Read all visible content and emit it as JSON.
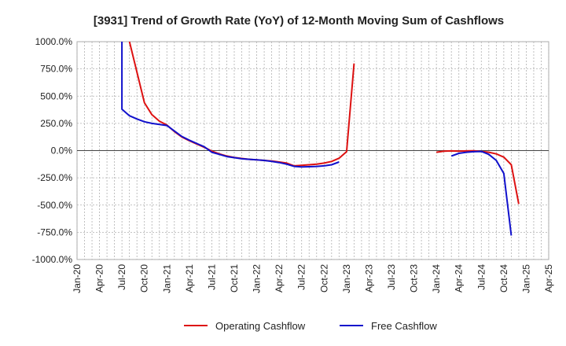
{
  "chart_data": {
    "type": "line",
    "title": "[3931]  Trend of Growth Rate (YoY) of 12-Month Moving Sum of Cashflows",
    "xlabel": "",
    "ylabel": "",
    "ylim": [
      -1000,
      1000
    ],
    "yticks": [
      1000,
      750,
      500,
      250,
      0,
      -250,
      -500,
      -750,
      -1000
    ],
    "ytick_labels": [
      "1000.0%",
      "750.0%",
      "500.0%",
      "250.0%",
      "0.0%",
      "-250.0%",
      "-500.0%",
      "-750.0%",
      "-1000.0%"
    ],
    "xrange": [
      "2020-01",
      "2025-04"
    ],
    "xtick_labels": [
      "Jan-20",
      "Apr-20",
      "Jul-20",
      "Oct-20",
      "Jan-21",
      "Apr-21",
      "Jul-21",
      "Oct-21",
      "Jan-22",
      "Apr-22",
      "Jul-22",
      "Oct-22",
      "Jan-23",
      "Apr-23",
      "Jul-23",
      "Oct-23",
      "Jan-24",
      "Apr-24",
      "Jul-24",
      "Oct-24",
      "Jan-25",
      "Apr-25"
    ],
    "grid": true,
    "legend_position": "bottom",
    "series": [
      {
        "name": "Operating Cashflow",
        "color": "#dd1111",
        "points": [
          [
            "2020-08",
            1000
          ],
          [
            "2020-09",
            720
          ],
          [
            "2020-10",
            440
          ],
          [
            "2020-11",
            330
          ],
          [
            "2020-12",
            270
          ],
          [
            "2021-01",
            235
          ],
          [
            "2021-02",
            175
          ],
          [
            "2021-03",
            125
          ],
          [
            "2021-04",
            90
          ],
          [
            "2021-05",
            60
          ],
          [
            "2021-06",
            30
          ],
          [
            "2021-07",
            -5
          ],
          [
            "2021-08",
            -30
          ],
          [
            "2021-09",
            -50
          ],
          [
            "2021-10",
            -63
          ],
          [
            "2021-11",
            -72
          ],
          [
            "2021-12",
            -80
          ],
          [
            "2022-01",
            -85
          ],
          [
            "2022-02",
            -90
          ],
          [
            "2022-03",
            -95
          ],
          [
            "2022-04",
            -105
          ],
          [
            "2022-05",
            -115
          ],
          [
            "2022-06",
            -140
          ],
          [
            "2022-07",
            -135
          ],
          [
            "2022-08",
            -130
          ],
          [
            "2022-09",
            -125
          ],
          [
            "2022-10",
            -115
          ],
          [
            "2022-11",
            -100
          ],
          [
            "2022-12",
            -70
          ],
          [
            "2023-01",
            -10
          ],
          [
            "2023-02",
            800
          ]
        ],
        "points_2": [
          [
            "2024-01",
            -15
          ],
          [
            "2024-02",
            -5
          ],
          [
            "2024-03",
            -3
          ],
          [
            "2024-04",
            -5
          ],
          [
            "2024-05",
            -3
          ],
          [
            "2024-06",
            -2
          ],
          [
            "2024-07",
            -8
          ],
          [
            "2024-08",
            -15
          ],
          [
            "2024-09",
            -30
          ],
          [
            "2024-10",
            -60
          ],
          [
            "2024-11",
            -130
          ],
          [
            "2024-12",
            -490
          ]
        ]
      },
      {
        "name": "Free Cashflow",
        "color": "#1111cc",
        "points": [
          [
            "2020-07",
            1000
          ],
          [
            "2020-07",
            380
          ],
          [
            "2020-08",
            320
          ],
          [
            "2020-09",
            290
          ],
          [
            "2020-10",
            265
          ],
          [
            "2020-11",
            250
          ],
          [
            "2020-12",
            240
          ],
          [
            "2021-01",
            230
          ],
          [
            "2021-02",
            180
          ],
          [
            "2021-03",
            130
          ],
          [
            "2021-04",
            95
          ],
          [
            "2021-05",
            65
          ],
          [
            "2021-06",
            35
          ],
          [
            "2021-07",
            -15
          ],
          [
            "2021-08",
            -35
          ],
          [
            "2021-09",
            -55
          ],
          [
            "2021-10",
            -65
          ],
          [
            "2021-11",
            -75
          ],
          [
            "2021-12",
            -80
          ],
          [
            "2022-01",
            -85
          ],
          [
            "2022-02",
            -90
          ],
          [
            "2022-03",
            -100
          ],
          [
            "2022-04",
            -110
          ],
          [
            "2022-05",
            -125
          ],
          [
            "2022-06",
            -145
          ],
          [
            "2022-07",
            -150
          ],
          [
            "2022-08",
            -148
          ],
          [
            "2022-09",
            -145
          ],
          [
            "2022-10",
            -140
          ],
          [
            "2022-11",
            -130
          ],
          [
            "2022-12",
            -105
          ]
        ],
        "points_2": [
          [
            "2024-03",
            -50
          ],
          [
            "2024-04",
            -25
          ],
          [
            "2024-05",
            -15
          ],
          [
            "2024-06",
            -10
          ],
          [
            "2024-07",
            -8
          ],
          [
            "2024-08",
            -35
          ],
          [
            "2024-09",
            -90
          ],
          [
            "2024-10",
            -210
          ],
          [
            "2024-11",
            -780
          ]
        ]
      }
    ]
  }
}
